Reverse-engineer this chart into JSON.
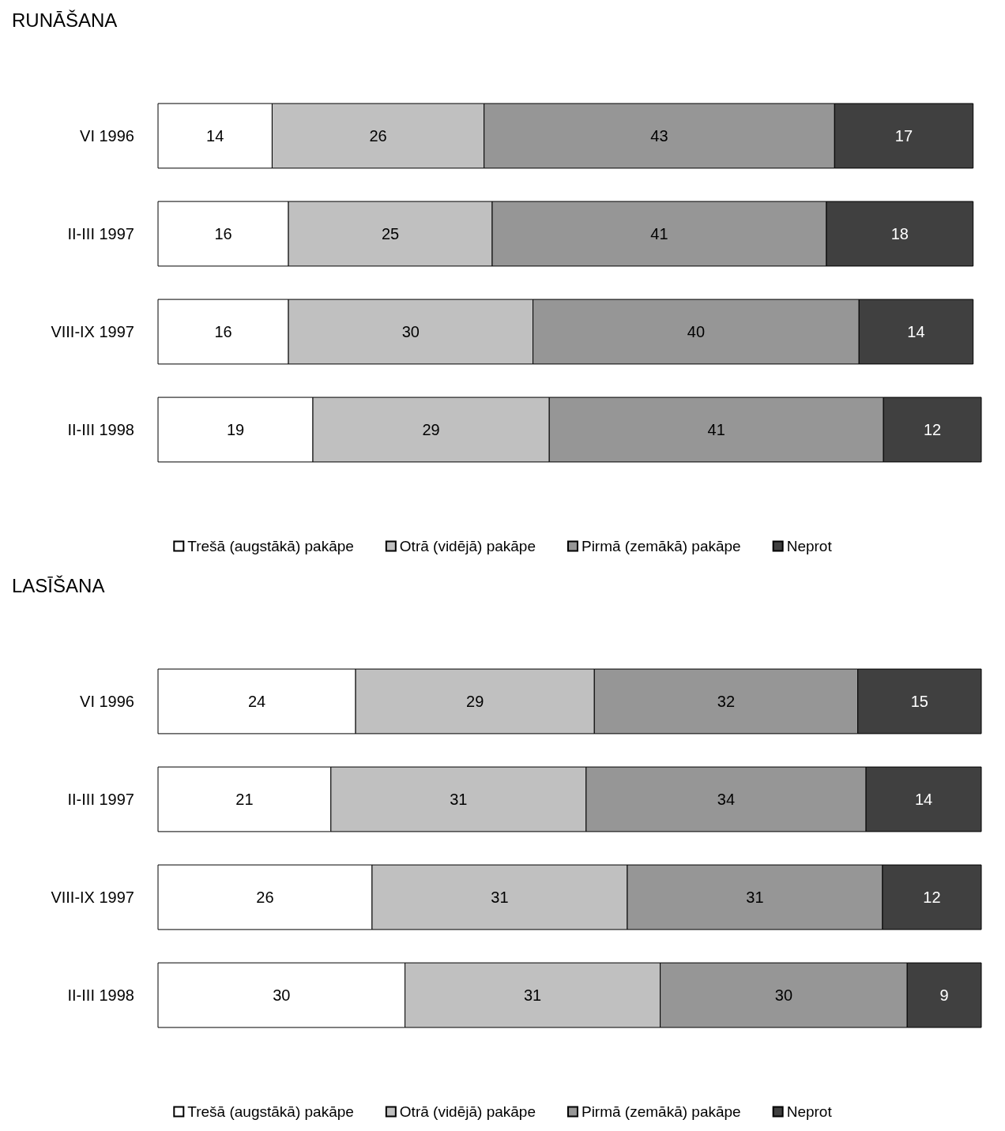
{
  "chart_data": [
    {
      "type": "bar",
      "title": "RUNĀŠANA",
      "orientation": "horizontal",
      "stacked": true,
      "data_labels": true,
      "legend": "bottom",
      "categories": [
        "VI 1996",
        "II-III 1997",
        "VIII-IX 1997",
        "II-III 1998"
      ],
      "series": [
        {
          "name": "Trešā (augstākā) pakāpe",
          "color": "#ffffff",
          "values": [
            14,
            16,
            16,
            19
          ]
        },
        {
          "name": "Otrā (vidējā) pakāpe",
          "color": "#c0c0c0",
          "values": [
            26,
            25,
            30,
            29
          ]
        },
        {
          "name": "Pirmā (zemākā) pakāpe",
          "color": "#969696",
          "values": [
            43,
            41,
            40,
            41
          ]
        },
        {
          "name": "Neprot",
          "color": "#404040",
          "values": [
            17,
            18,
            14,
            12
          ]
        }
      ]
    },
    {
      "type": "bar",
      "title": "LASĪŠANA",
      "orientation": "horizontal",
      "stacked": true,
      "data_labels": true,
      "legend": "bottom",
      "categories": [
        "VI 1996",
        "II-III 1997",
        "VIII-IX 1997",
        "II-III 1998"
      ],
      "series": [
        {
          "name": "Trešā (augstākā) pakāpe",
          "color": "#ffffff",
          "values": [
            24,
            21,
            26,
            30
          ]
        },
        {
          "name": "Otrā (vidējā) pakāpe",
          "color": "#c0c0c0",
          "values": [
            29,
            31,
            31,
            31
          ]
        },
        {
          "name": "Pirmā (zemākā) pakāpe",
          "color": "#969696",
          "values": [
            32,
            34,
            31,
            30
          ]
        },
        {
          "name": "Neprot",
          "color": "#404040",
          "values": [
            15,
            14,
            12,
            9
          ]
        }
      ]
    }
  ]
}
